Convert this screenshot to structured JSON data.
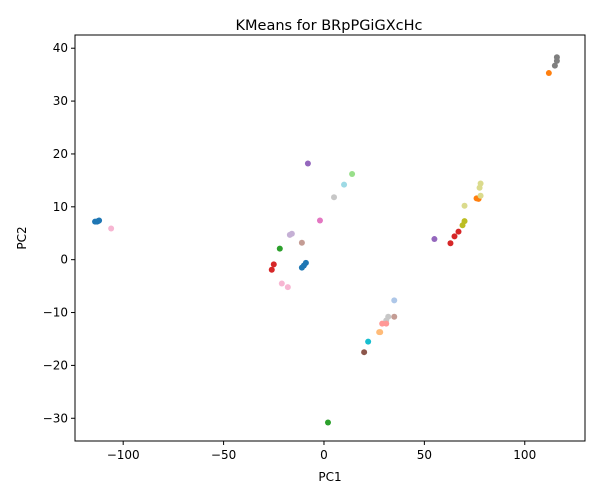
{
  "chart_data": {
    "type": "scatter",
    "title": "KMeans for BRpPGiGXcHc",
    "xlabel": "PC1",
    "ylabel": "PC2",
    "xlim": [
      -124,
      130
    ],
    "ylim": [
      -34.3,
      42.5
    ],
    "xticks": [
      -100,
      -50,
      0,
      50,
      100
    ],
    "yticks": [
      -30,
      -20,
      -10,
      0,
      10,
      20,
      30,
      40
    ],
    "grid": false,
    "legend": false,
    "points": [
      {
        "x": -113,
        "y": 7.2,
        "color": "#1f77b4"
      },
      {
        "x": -112.5,
        "y": 7.3,
        "color": "#1f77b4"
      },
      {
        "x": -112,
        "y": 7.4,
        "color": "#1f77b4"
      },
      {
        "x": -114,
        "y": 7.2,
        "color": "#1f77b4"
      },
      {
        "x": -106,
        "y": 5.9,
        "color": "#f7b6d2"
      },
      {
        "x": -8,
        "y": 18.2,
        "color": "#9467bd"
      },
      {
        "x": 14,
        "y": 16.2,
        "color": "#98df8a"
      },
      {
        "x": 10,
        "y": 14.2,
        "color": "#9edae5"
      },
      {
        "x": 5,
        "y": 11.8,
        "color": "#c7c7c7"
      },
      {
        "x": -2,
        "y": 7.4,
        "color": "#e377c2"
      },
      {
        "x": -16,
        "y": 4.9,
        "color": "#c5b0d5"
      },
      {
        "x": -17,
        "y": 4.7,
        "color": "#c5b0d5"
      },
      {
        "x": -11,
        "y": 3.2,
        "color": "#c49c94"
      },
      {
        "x": -22,
        "y": 2.1,
        "color": "#2ca02c"
      },
      {
        "x": -25,
        "y": -0.9,
        "color": "#d62728"
      },
      {
        "x": -26,
        "y": -1.9,
        "color": "#d62728"
      },
      {
        "x": -9,
        "y": -0.6,
        "color": "#1f77b4"
      },
      {
        "x": -10,
        "y": -1.1,
        "color": "#1f77b4"
      },
      {
        "x": -11,
        "y": -1.5,
        "color": "#1f77b4"
      },
      {
        "x": -21,
        "y": -4.5,
        "color": "#f7b6d2"
      },
      {
        "x": -18,
        "y": -5.2,
        "color": "#f7b6d2"
      },
      {
        "x": 55,
        "y": 3.9,
        "color": "#9467bd"
      },
      {
        "x": 63,
        "y": 3.1,
        "color": "#d62728"
      },
      {
        "x": 65,
        "y": 4.4,
        "color": "#d62728"
      },
      {
        "x": 67,
        "y": 5.3,
        "color": "#d62728"
      },
      {
        "x": 69,
        "y": 6.5,
        "color": "#bcbd22"
      },
      {
        "x": 70,
        "y": 7.3,
        "color": "#bcbd22"
      },
      {
        "x": 70,
        "y": 10.2,
        "color": "#dbdb8d"
      },
      {
        "x": 76,
        "y": 11.6,
        "color": "#ff7f0e"
      },
      {
        "x": 77,
        "y": 11.5,
        "color": "#ff7f0e"
      },
      {
        "x": 78,
        "y": 12.1,
        "color": "#dbdb8d"
      },
      {
        "x": 77.5,
        "y": 13.6,
        "color": "#dbdb8d"
      },
      {
        "x": 78,
        "y": 14.4,
        "color": "#dbdb8d"
      },
      {
        "x": 112,
        "y": 35.3,
        "color": "#ff7f0e"
      },
      {
        "x": 115,
        "y": 36.7,
        "color": "#7f7f7f"
      },
      {
        "x": 116,
        "y": 37.6,
        "color": "#7f7f7f"
      },
      {
        "x": 116,
        "y": 38.3,
        "color": "#7f7f7f"
      },
      {
        "x": 35,
        "y": -7.7,
        "color": "#aec7e8"
      },
      {
        "x": 35,
        "y": -10.8,
        "color": "#c49c94"
      },
      {
        "x": 32,
        "y": -10.8,
        "color": "#c7c7c7"
      },
      {
        "x": 31,
        "y": -11.5,
        "color": "#c7c7c7"
      },
      {
        "x": 31,
        "y": -12.1,
        "color": "#ff9896"
      },
      {
        "x": 29,
        "y": -12.1,
        "color": "#ff9896"
      },
      {
        "x": 28,
        "y": -13.7,
        "color": "#ffbb78"
      },
      {
        "x": 27.5,
        "y": -13.7,
        "color": "#ffbb78"
      },
      {
        "x": 22,
        "y": -15.5,
        "color": "#17becf"
      },
      {
        "x": 20,
        "y": -17.5,
        "color": "#8c564b"
      },
      {
        "x": 2,
        "y": -30.8,
        "color": "#2ca02c"
      }
    ]
  }
}
